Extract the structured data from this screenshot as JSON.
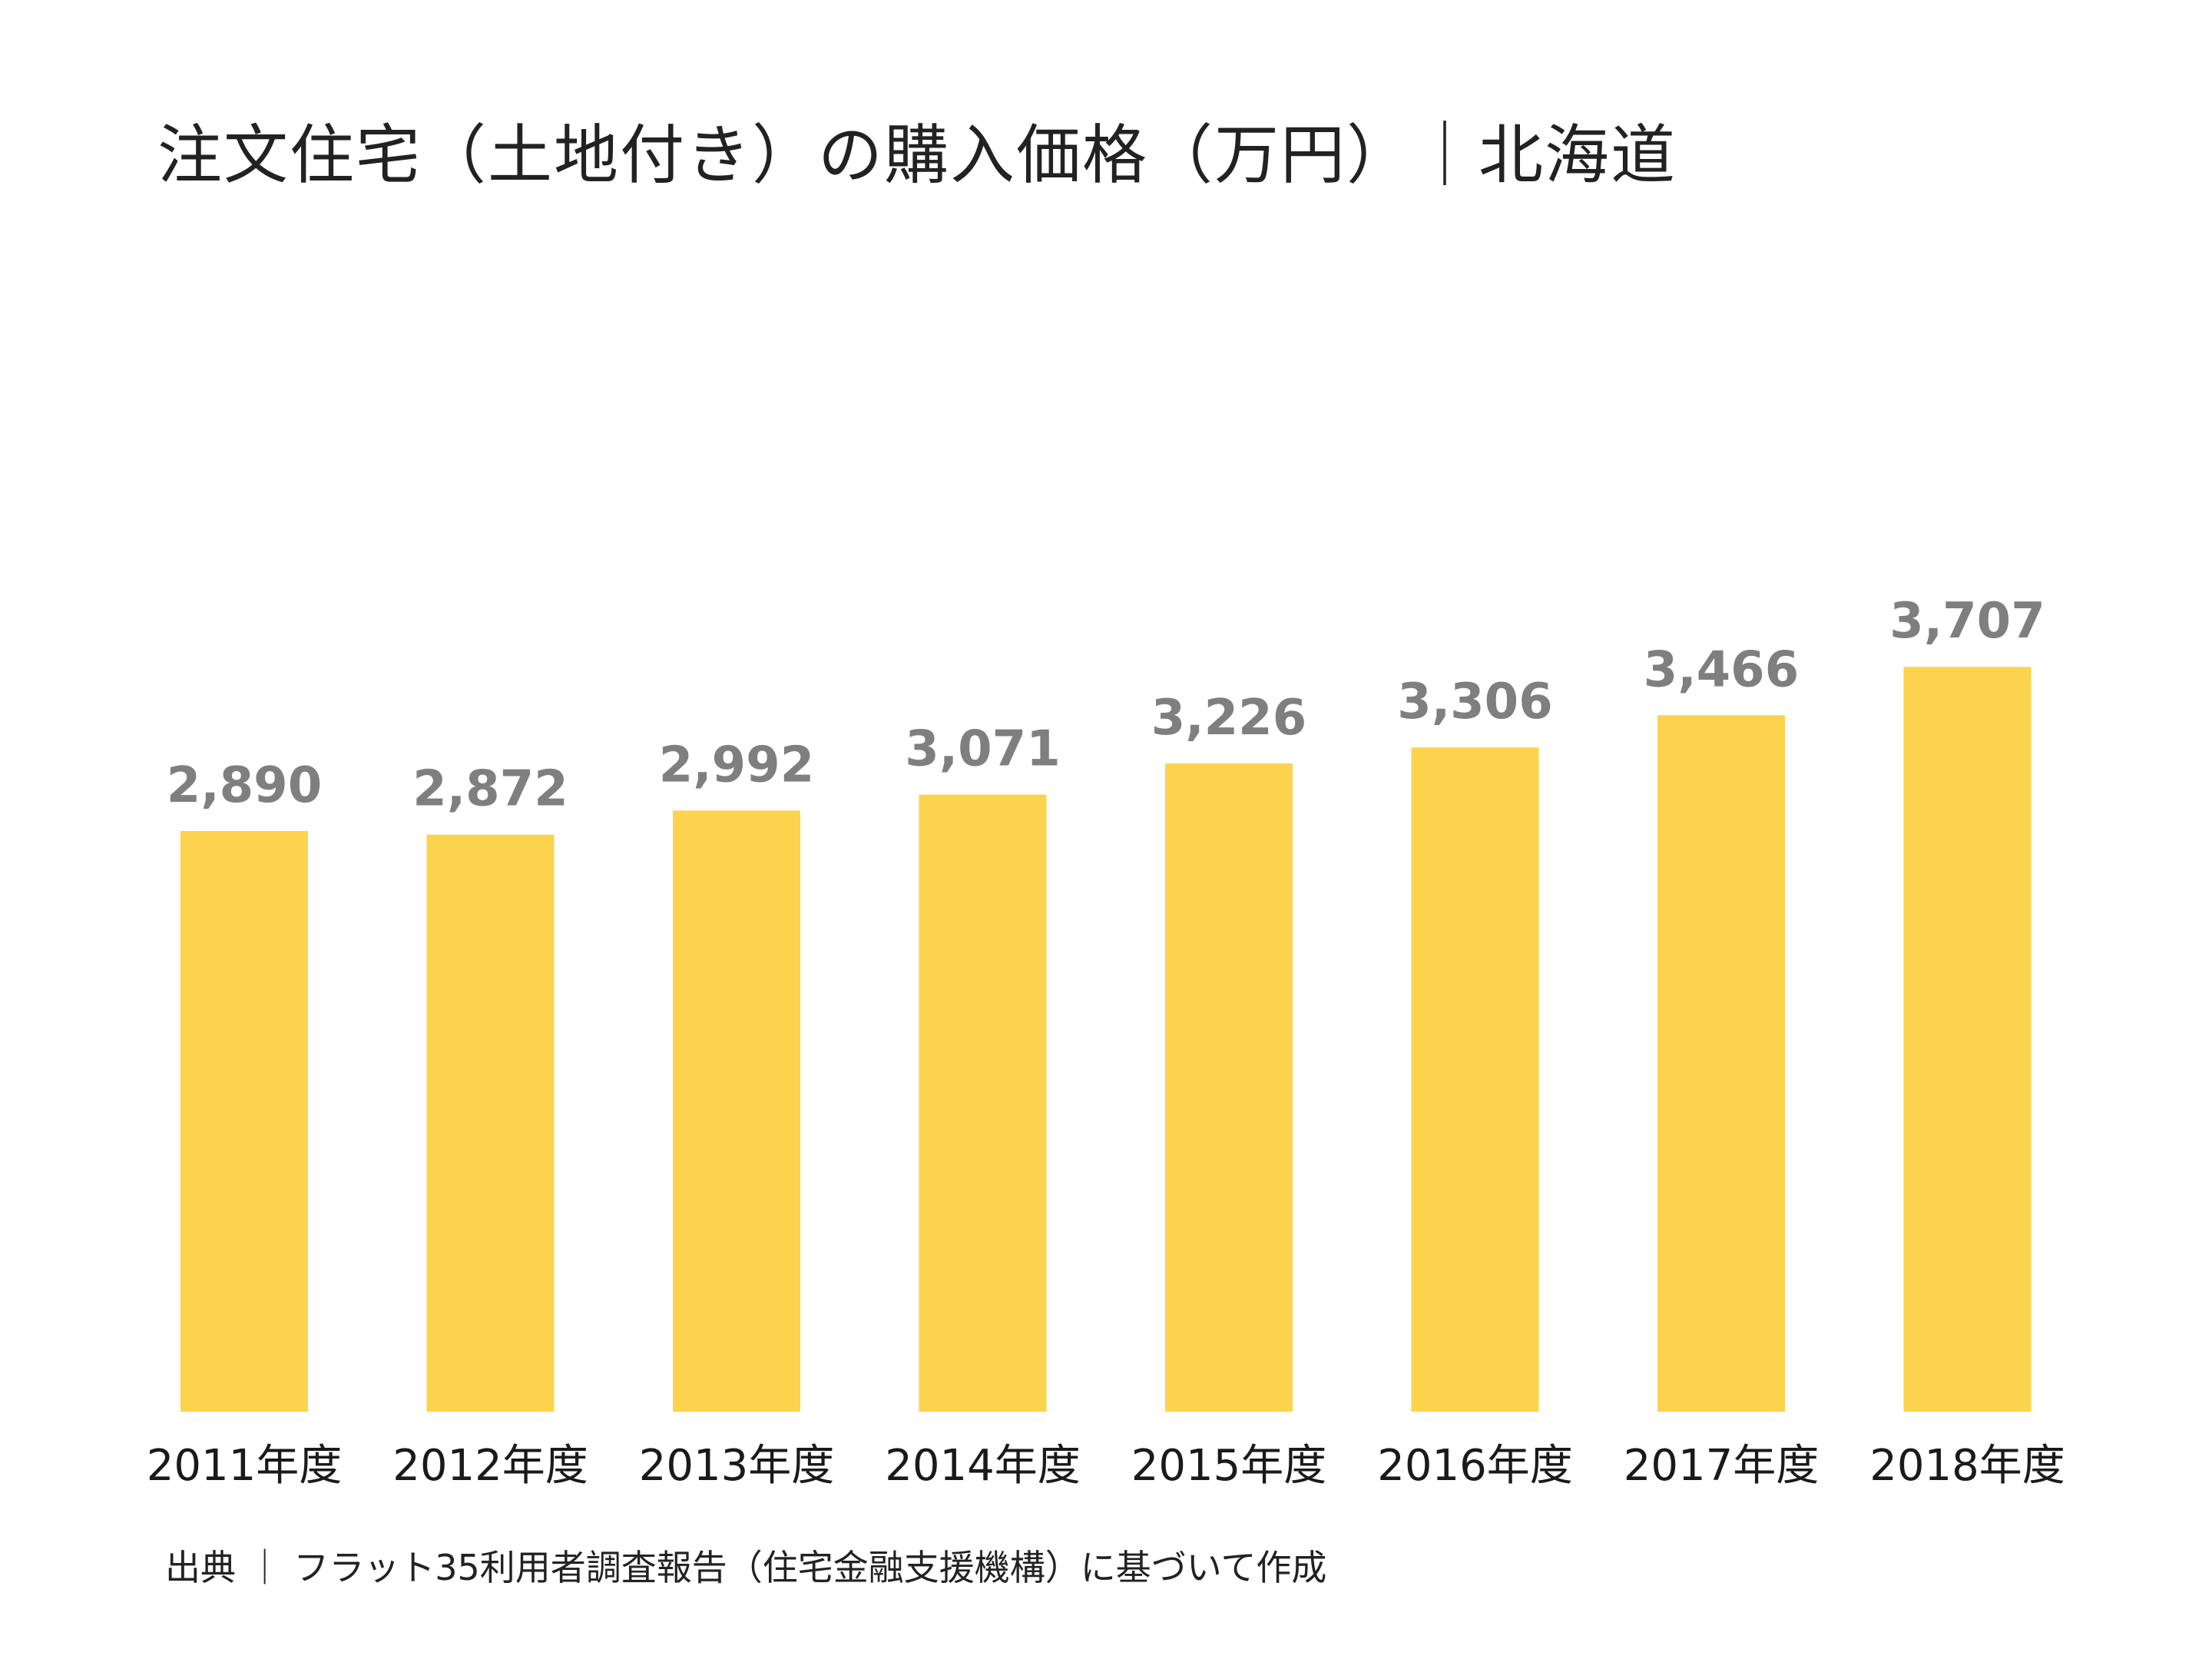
{
  "chart_data": {
    "type": "bar",
    "title": "注文住宅（土地付き）の購入価格（万円）｜北海道",
    "categories": [
      "2011年度",
      "2012年度",
      "2013年度",
      "2014年度",
      "2015年度",
      "2016年度",
      "2017年度",
      "2018年度"
    ],
    "values": [
      2890,
      2872,
      2992,
      3071,
      3226,
      3306,
      3466,
      3707
    ],
    "value_labels": [
      "2,890",
      "2,872",
      "2,992",
      "3,071",
      "3,226",
      "3,306",
      "3,466",
      "3,707"
    ],
    "xlabel": "",
    "ylabel": "",
    "ylim": [
      0,
      3707
    ],
    "grid": false,
    "legend": "none",
    "bar_color": "#FCD34D",
    "value_label_color": "#7F7F7F",
    "source": "出典 ｜ フラット35利用者調査報告（住宅金融支援機構）に基づいて作成"
  }
}
